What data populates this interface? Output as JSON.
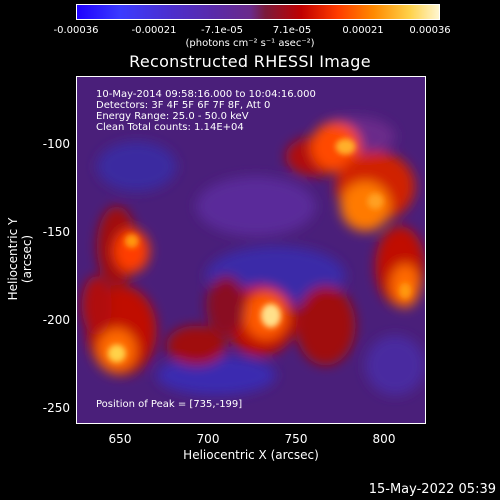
{
  "colorbar": {
    "ticks": [
      "-0.00036",
      "-0.00021",
      "-7.1e-05",
      "7.1e-05",
      "0.00021",
      "0.00036"
    ],
    "unit": "(photons cm⁻² s⁻¹ asec⁻²)"
  },
  "title": "Reconstructed RHESSI Image",
  "info": {
    "line1": "10-May-2014 09:58:16.000 to 10:04:16.000",
    "line2": "Detectors: 3F 4F 5F 6F 7F 8F, Att 0",
    "line3": "Energy Range: 25.0 - 50.0 keV",
    "line4": "Clean     Total counts: 1.14E+04",
    "peak": "Position of Peak = [735,-199]"
  },
  "axes": {
    "xlabel": "Heliocentric X (arcsec)",
    "ylabel": "Heliocentric Y (arcsec)",
    "xticks": [
      "650",
      "700",
      "750",
      "800"
    ],
    "yticks": [
      "-100",
      "-150",
      "-200",
      "-250"
    ]
  },
  "timestamp": "15-May-2022 05:39"
}
